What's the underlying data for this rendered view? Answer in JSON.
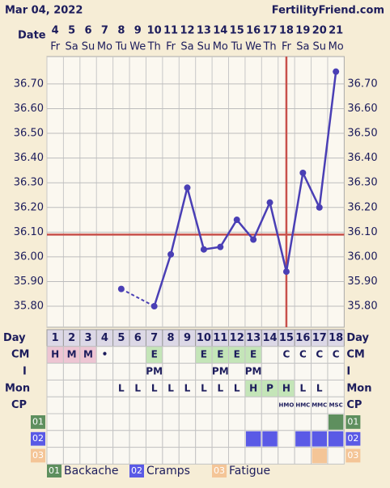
{
  "header": {
    "date": "Mar 04, 2022",
    "site": "FertilityFriend.com"
  },
  "chart_data": {
    "type": "line",
    "x_label": "Date",
    "categories": [
      "4",
      "5",
      "6",
      "7",
      "8",
      "9",
      "10",
      "11",
      "12",
      "13",
      "14",
      "15",
      "16",
      "17",
      "18",
      "19",
      "20",
      "21"
    ],
    "weekdays": [
      "Fr",
      "Sa",
      "Su",
      "Mo",
      "Tu",
      "We",
      "Th",
      "Fr",
      "Sa",
      "Su",
      "Mo",
      "Tu",
      "We",
      "Th",
      "Fr",
      "Sa",
      "Su",
      "Mo"
    ],
    "values": [
      null,
      null,
      null,
      null,
      35.87,
      null,
      35.8,
      36.01,
      36.28,
      36.03,
      36.04,
      36.15,
      36.07,
      36.22,
      35.94,
      36.34,
      36.2,
      36.75
    ],
    "color": "#4a3fb5",
    "ylim": [
      35.715,
      36.811
    ],
    "yticks": [
      {
        "value": 35.8,
        "label": "35.80"
      },
      {
        "value": 35.9,
        "label": "35.90"
      },
      {
        "value": 36.0,
        "label": "36.00"
      },
      {
        "value": 36.1,
        "label": "36.10"
      },
      {
        "value": 36.2,
        "label": "36.20"
      },
      {
        "value": 36.3,
        "label": "36.30"
      },
      {
        "value": 36.4,
        "label": "36.40"
      },
      {
        "value": 36.5,
        "label": "36.50"
      },
      {
        "value": 36.6,
        "label": "36.60"
      },
      {
        "value": 36.7,
        "label": "36.70"
      }
    ],
    "grid": true,
    "coverline": 36.09,
    "coverline_color": "#c8504a",
    "ovulation_cycle_day": 15
  },
  "table": {
    "labels": {
      "day": "Day",
      "cm": "CM",
      "i": "I",
      "mon": "Mon",
      "cp": "CP"
    },
    "days": [
      1,
      2,
      3,
      4,
      5,
      6,
      7,
      8,
      9,
      10,
      11,
      12,
      13,
      14,
      15,
      16,
      17,
      18
    ],
    "cm": [
      "H",
      "M",
      "M",
      "•",
      null,
      null,
      "E",
      null,
      null,
      "E",
      "E",
      "E",
      "E",
      null,
      "C",
      "C",
      "C",
      "C"
    ],
    "i": [
      null,
      null,
      null,
      null,
      null,
      null,
      "PM",
      null,
      null,
      null,
      "PM",
      null,
      "PM",
      null,
      null,
      null,
      null,
      null
    ],
    "mon": [
      null,
      null,
      null,
      null,
      "L",
      "L",
      "L",
      "L",
      "L",
      "L",
      "L",
      "L",
      "H",
      "P",
      "H",
      "L",
      "L",
      null
    ],
    "cp": [
      null,
      null,
      null,
      null,
      null,
      null,
      null,
      null,
      null,
      null,
      null,
      null,
      null,
      null,
      "HMO",
      "HMC",
      "MMC",
      "MSC"
    ],
    "cm_colors": {
      "H": "#edc5d3",
      "M": "#edc5d3",
      "E": "#c4e5b8"
    },
    "mon_colors": {
      "H": "#c4e5b8",
      "P": "#c4e5b8"
    },
    "symptoms": [
      {
        "code": "01",
        "name": "Backache",
        "color": "#5e8f5e",
        "days": [
          18
        ]
      },
      {
        "code": "02",
        "name": "Cramps",
        "color": "#5a5ae6",
        "days": [
          13,
          14,
          16,
          17,
          18
        ]
      },
      {
        "code": "03",
        "name": "Fatigue",
        "color": "#f4c597",
        "days": [
          17
        ]
      }
    ]
  }
}
